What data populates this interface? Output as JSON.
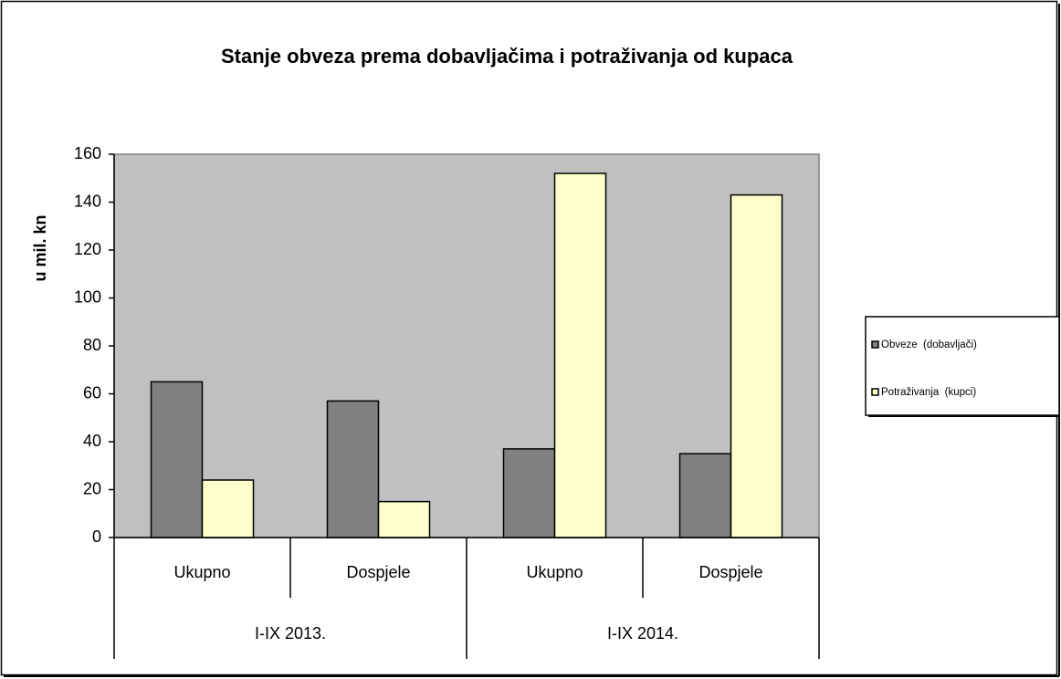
{
  "chart_data": {
    "type": "bar",
    "title": "Stanje obveza prema dobavljačima i potraživanja od kupaca",
    "y_label": "u mil. kn",
    "groups": [
      {
        "label": "I-IX 2013.",
        "categories": [
          "Ukupno",
          "Dospjele"
        ]
      },
      {
        "label": "I-IX 2014.",
        "categories": [
          "Ukupno",
          "Dospjele"
        ]
      }
    ],
    "series": [
      {
        "name": "Obveze  (dobavljači)",
        "color": "#808080",
        "values": [
          65,
          57,
          37,
          35
        ]
      },
      {
        "name": "Potraživanja  (kupci)",
        "color": "#ffffcc",
        "values": [
          24,
          15,
          152,
          143
        ]
      }
    ],
    "ylim": [
      0,
      160
    ],
    "yticks": [
      0,
      20,
      40,
      60,
      80,
      100,
      120,
      140,
      160
    ],
    "plot_background": "#c0c0c0",
    "legend": "right"
  }
}
